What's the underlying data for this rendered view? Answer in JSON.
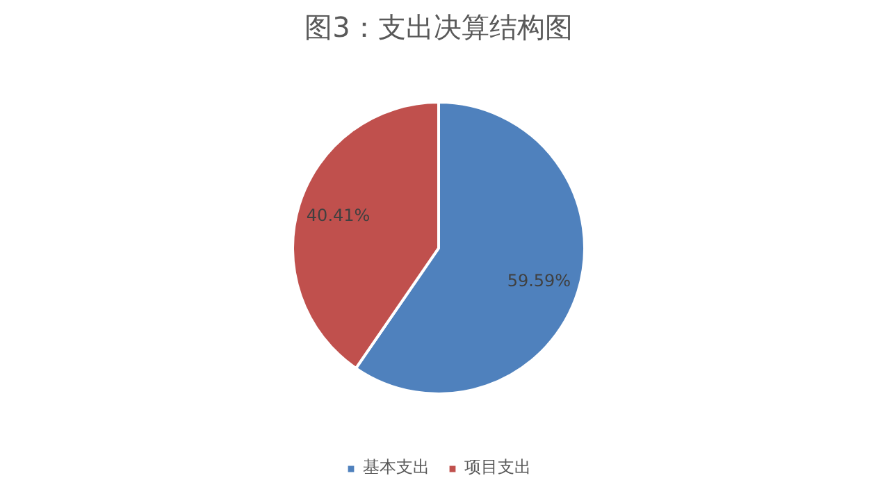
{
  "chart_data": {
    "type": "pie",
    "title": "图3：支出决算结构图",
    "categories": [
      "基本支出",
      "项目支出"
    ],
    "values": [
      59.59,
      40.41
    ],
    "colors": [
      "#4f81bd",
      "#c0504d"
    ],
    "value_labels": [
      "59.59%",
      "40.41%"
    ],
    "legend": "bottom"
  }
}
